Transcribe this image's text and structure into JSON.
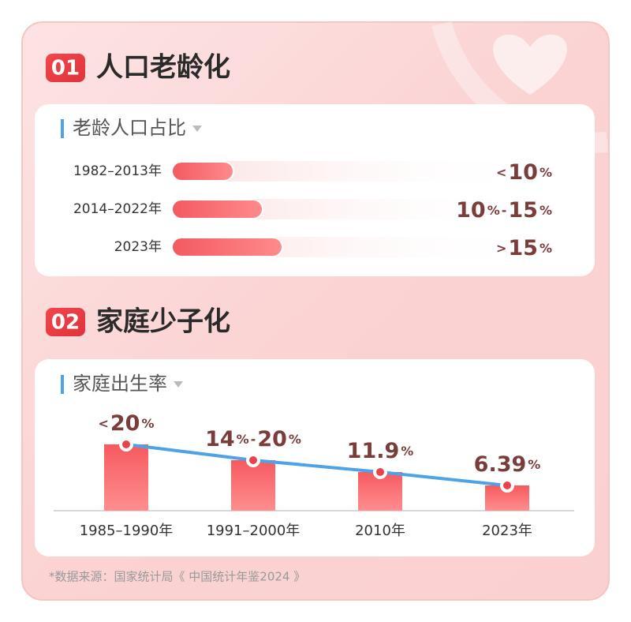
{
  "sections": [
    {
      "number": "01",
      "title": "人口老龄化",
      "card_title": "老龄人口占比",
      "rows": [
        {
          "period": "1982–2013年",
          "label": [
            "<",
            "10",
            "%"
          ]
        },
        {
          "period": "2014–2022年",
          "label": [
            "10",
            "%",
            "-",
            "15",
            "%"
          ]
        },
        {
          "period": "2023年",
          "label": [
            ">",
            "15",
            "%"
          ]
        }
      ]
    },
    {
      "number": "02",
      "title": "家庭少子化",
      "card_title": "家庭出生率",
      "rows": [
        {
          "period": "1985–1990年",
          "label": [
            "<",
            "20",
            "%"
          ]
        },
        {
          "period": "1991–2000年",
          "label": [
            "14",
            "%",
            "-",
            "20",
            "%"
          ]
        },
        {
          "period": "2010年",
          "label": [
            "11.9",
            "%"
          ]
        },
        {
          "period": "2023年",
          "label": [
            "6.39",
            "%"
          ]
        }
      ]
    }
  ],
  "source": "*数据来源：国家统计局《 中国统计年鉴2024 》"
}
